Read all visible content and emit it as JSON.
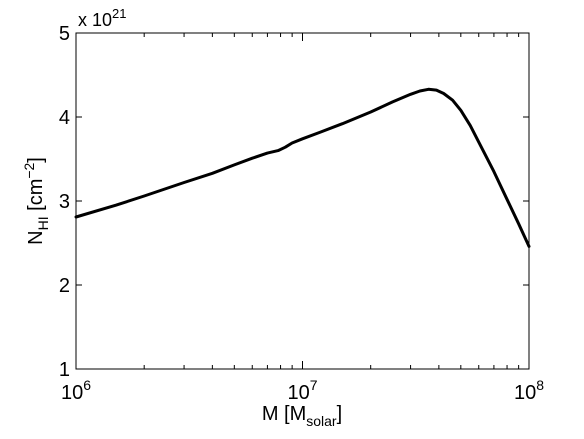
{
  "chart_data": {
    "type": "line",
    "xlabel": {
      "main": "M [M",
      "sub": "solar",
      "close": "]"
    },
    "ylabel": {
      "main": "N",
      "sub": "HI",
      "unit_open": " [cm",
      "sup": "−2",
      "unit_close": "]"
    },
    "y_multiplier": {
      "base": "x 10",
      "exponent": "21"
    },
    "x_scale": "log",
    "xlim": [
      1000000,
      100000000
    ],
    "ylim": [
      1,
      5
    ],
    "x_ticks": [
      {
        "value": 1000000,
        "base": "10",
        "exp": "6"
      },
      {
        "value": 10000000,
        "base": "10",
        "exp": "7"
      },
      {
        "value": 100000000,
        "base": "10",
        "exp": "8"
      }
    ],
    "y_ticks": [
      {
        "value": 1,
        "label": "1"
      },
      {
        "value": 2,
        "label": "2"
      },
      {
        "value": 3,
        "label": "3"
      },
      {
        "value": 4,
        "label": "4"
      },
      {
        "value": 5,
        "label": "5"
      }
    ],
    "grid": false,
    "legend": "none",
    "line_color": "#000000",
    "series": [
      {
        "x": [
          1000000,
          1500000,
          2000000,
          3000000,
          4000000,
          5000000,
          6000000,
          7000000,
          7800000,
          8400000,
          9000000,
          10000000,
          12000000,
          15000000,
          20000000,
          25000000,
          30000000,
          33000000,
          36000000,
          39000000,
          42000000,
          46000000,
          50000000,
          55000000,
          60000000,
          70000000,
          80000000,
          90000000,
          100000000
        ],
        "y": [
          2.81,
          2.95,
          3.06,
          3.22,
          3.33,
          3.43,
          3.51,
          3.57,
          3.6,
          3.64,
          3.69,
          3.74,
          3.82,
          3.92,
          4.06,
          4.18,
          4.27,
          4.31,
          4.33,
          4.32,
          4.28,
          4.2,
          4.08,
          3.9,
          3.7,
          3.35,
          3.02,
          2.73,
          2.46
        ]
      }
    ]
  }
}
